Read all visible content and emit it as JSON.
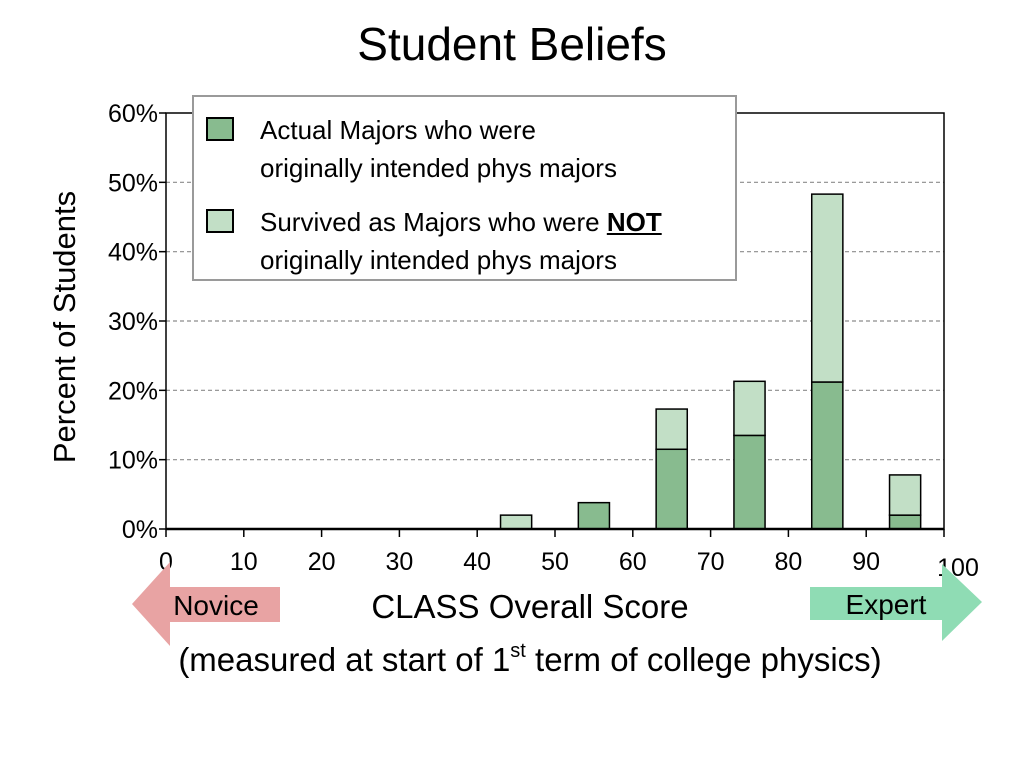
{
  "chart_data": {
    "type": "bar",
    "stacked": true,
    "title": "Student Beliefs",
    "xlabel": "CLASS Overall Score",
    "subtitle": {
      "before": "(measured at start of 1",
      "sup": "st",
      "after": " term of college physics)"
    },
    "ylabel": "Percent of Students",
    "xlim": [
      0,
      100
    ],
    "ylim": [
      0,
      60
    ],
    "xticks": [
      "0",
      "10",
      "20",
      "30",
      "40",
      "50",
      "60",
      "70",
      "80",
      "90",
      "100"
    ],
    "yticks": [
      "0%",
      "10%",
      "20%",
      "30%",
      "40%",
      "50%",
      "60%"
    ],
    "grid": "horizontal dashed",
    "legend_position": "top-left",
    "x": [
      45,
      55,
      65,
      75,
      85,
      95
    ],
    "series": [
      {
        "legend": [
          "Actual Majors who were",
          "originally intended phys majors"
        ],
        "color": "#88bb8f",
        "values": [
          0,
          3.8,
          11.5,
          13.5,
          21.2,
          2.0
        ]
      },
      {
        "legend_before": "Survived as Majors who were ",
        "legend_bold": "NOT",
        "legend_line2": "originally intended phys majors",
        "color": "#c2dfc6",
        "values": [
          2.0,
          0,
          5.8,
          7.8,
          27.1,
          5.8
        ]
      }
    ],
    "annotations": {
      "novice": {
        "label": "Novice",
        "color": "#e8a3a3"
      },
      "expert": {
        "label": "Expert",
        "color": "#8fdcb4"
      }
    }
  }
}
